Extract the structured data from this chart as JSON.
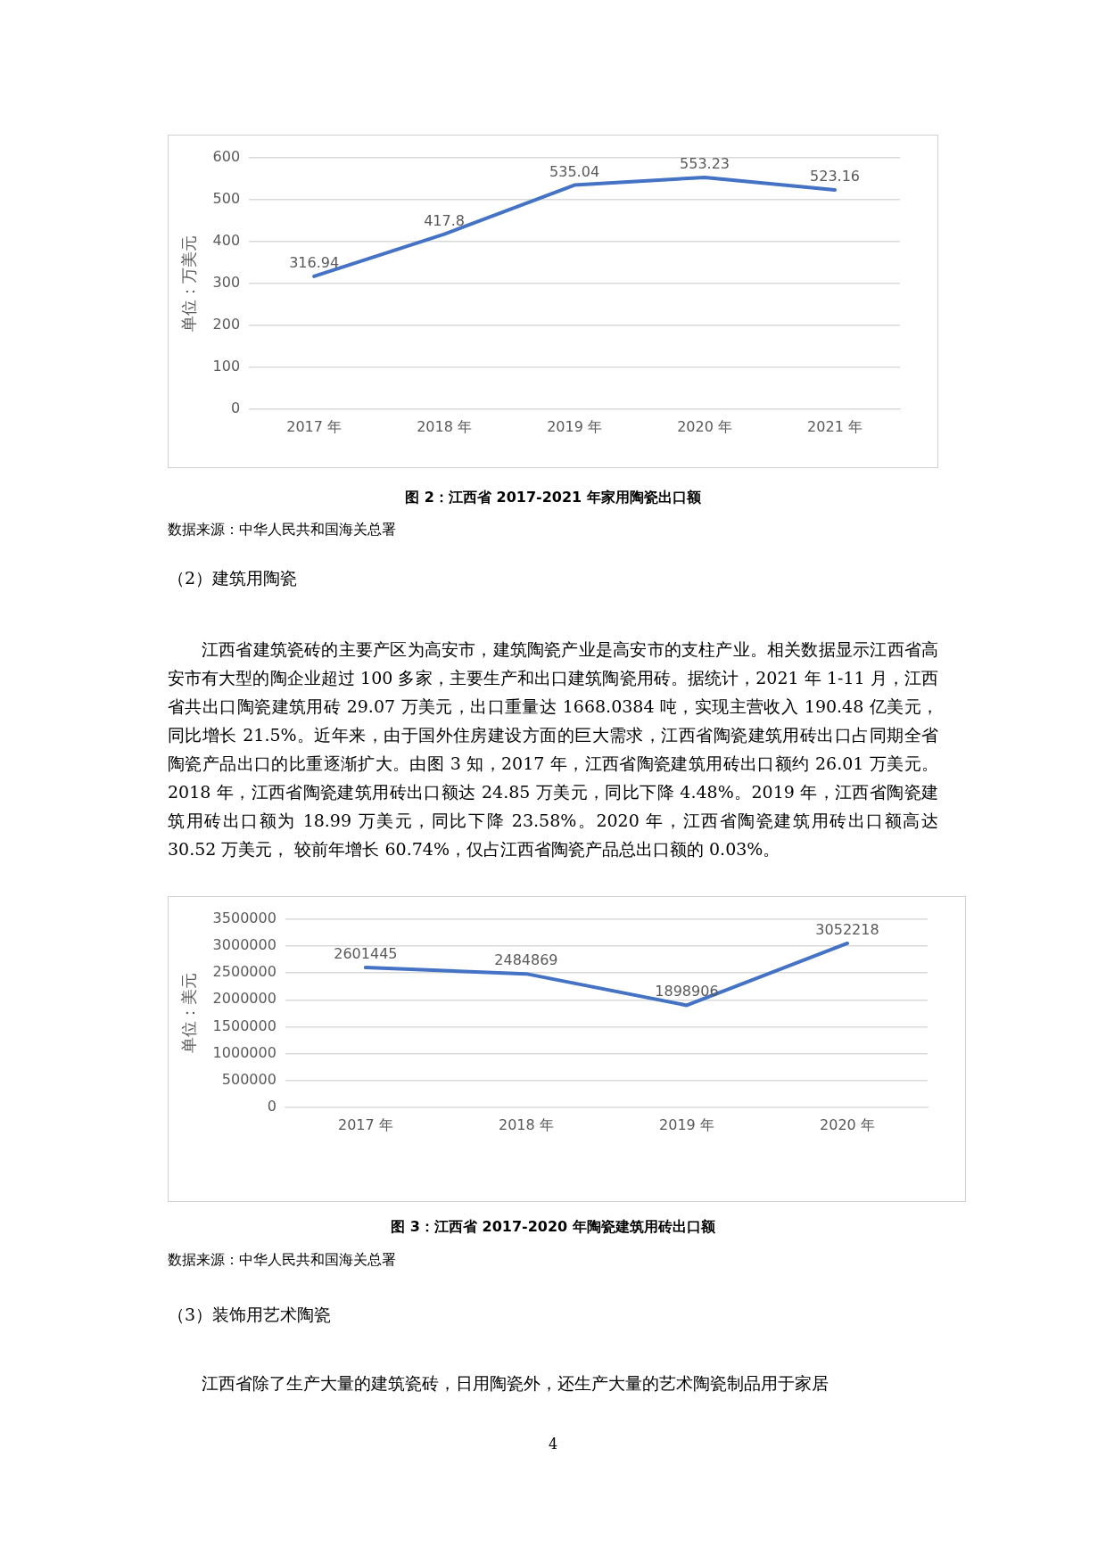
{
  "chart_data": [
    {
      "type": "line",
      "title": "图 2：江西省 2017-2021 年家用陶瓷出口额",
      "ylabel": "单位：万美元",
      "categories": [
        "2017 年",
        "2018 年",
        "2019 年",
        "2020 年",
        "2021 年"
      ],
      "series": [
        {
          "color": "#4472c4",
          "values": [
            316.94,
            417.8,
            535.04,
            553.23,
            523.16
          ]
        }
      ],
      "ylim": [
        0,
        600
      ],
      "yticks": [
        0,
        100,
        200,
        300,
        400,
        500,
        600
      ],
      "grid": "y",
      "legend": false,
      "marker": "none",
      "line_style": "solid",
      "data_labels": true,
      "annotations": [
        "数据来源：中华人民共和国海关总署",
        "（2）建筑用陶瓷",
        "江西省建筑瓷砖的主要产区为高安市，建筑陶瓷产业是高安市的支柱产业。相关数据显示江西省高安市有大型的陶企业超过 100 多家，主要生产和出口建筑陶瓷用砖。据统计，2021 年 1-11 月，江西省共出口陶瓷建筑用砖 29.07 万美元，出口重量达 1668.0384 吨，实现主营收入 190.48 亿美元，同比增长 21.5%。近年来，由于国外住房建设方面的巨大需求，江西省陶瓷建筑用砖出口占同期全省陶瓷产品出口的比重逐渐扩大。由图 3 知，2017 年，江西省陶瓷建筑用砖出口额约 26.01 万美元。2018 年，江西省陶瓷建筑用砖出口额达 24.85 万美元，同比下降 4.48%。2019 年，江西省陶瓷建筑用砖出口额为 18.99 万美元，同比下降 23.58%。2020 年，江西省陶瓷建筑用砖出口额高达 30.52 万美元， 较前年增长 60.74%，仅占江西省陶瓷产品总出口额的 0.03%。"
      ]
    },
    {
      "type": "line",
      "title": "图 3：江西省 2017-2020 年陶瓷建筑用砖出口额",
      "ylabel": "单位：美元",
      "categories": [
        "2017 年",
        "2018 年",
        "2019 年",
        "2020 年"
      ],
      "series": [
        {
          "color": "#4472c4",
          "values": [
            2601445,
            2484869,
            1898906,
            3052218
          ]
        }
      ],
      "ylim": [
        0,
        3500000
      ],
      "yticks": [
        0,
        500000,
        1000000,
        1500000,
        2000000,
        2500000,
        3000000,
        3500000
      ],
      "grid": "y",
      "legend": false,
      "marker": "none",
      "line_style": "solid",
      "data_labels": true,
      "annotations": [
        "数据来源：中华人民共和国海关总署",
        "（3）装饰用艺术陶瓷",
        "江西省除了生产大量的建筑瓷砖，日用陶瓷外，还生产大量的艺术陶瓷制品用于家居",
        "4"
      ]
    }
  ]
}
